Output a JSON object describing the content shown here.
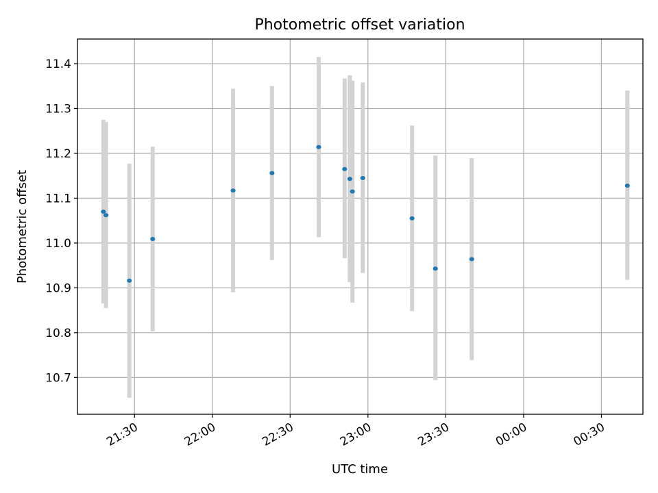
{
  "chart_data": {
    "type": "scatter",
    "title": "Photometric offset variation",
    "xlabel": "UTC time",
    "ylabel": "Photometric offset",
    "x_axis": {
      "kind": "time",
      "range": [
        "21:08",
        "00:46"
      ],
      "ticks": [
        "21:30",
        "22:00",
        "22:30",
        "23:00",
        "23:30",
        "00:00",
        "00:30"
      ]
    },
    "y_axis": {
      "range": [
        10.618,
        11.455
      ],
      "ticks": [
        "10.7",
        "10.8",
        "10.9",
        "11.0",
        "11.1",
        "11.2",
        "11.3",
        "11.4"
      ]
    },
    "grid": true,
    "series": [
      {
        "points": [
          {
            "x": "21:18",
            "y": 11.07,
            "err_low": 10.865,
            "err_high": 11.275
          },
          {
            "x": "21:19",
            "y": 11.062,
            "err_low": 10.855,
            "err_high": 11.27
          },
          {
            "x": "21:28",
            "y": 10.916,
            "err_low": 10.655,
            "err_high": 11.177
          },
          {
            "x": "21:37",
            "y": 11.009,
            "err_low": 10.803,
            "err_high": 11.215
          },
          {
            "x": "22:08",
            "y": 11.117,
            "err_low": 10.89,
            "err_high": 11.344
          },
          {
            "x": "22:23",
            "y": 11.156,
            "err_low": 10.962,
            "err_high": 11.35
          },
          {
            "x": "22:41",
            "y": 11.214,
            "err_low": 11.013,
            "err_high": 11.415
          },
          {
            "x": "22:51",
            "y": 11.165,
            "err_low": 10.966,
            "err_high": 11.367
          },
          {
            "x": "22:53",
            "y": 11.143,
            "err_low": 10.913,
            "err_high": 11.374
          },
          {
            "x": "22:54",
            "y": 11.115,
            "err_low": 10.867,
            "err_high": 11.362
          },
          {
            "x": "22:58",
            "y": 11.145,
            "err_low": 10.933,
            "err_high": 11.358
          },
          {
            "x": "23:17",
            "y": 11.055,
            "err_low": 10.848,
            "err_high": 11.262
          },
          {
            "x": "23:26",
            "y": 10.943,
            "err_low": 10.694,
            "err_high": 11.195
          },
          {
            "x": "23:40",
            "y": 10.964,
            "err_low": 10.739,
            "err_high": 11.189
          },
          {
            "x": "00:40",
            "y": 11.128,
            "err_low": 10.918,
            "err_high": 11.34
          }
        ]
      }
    ],
    "colors": {
      "marker": "#1f77b4",
      "errorbar": "#d3d3d3",
      "grid": "#b0b0b0"
    }
  }
}
